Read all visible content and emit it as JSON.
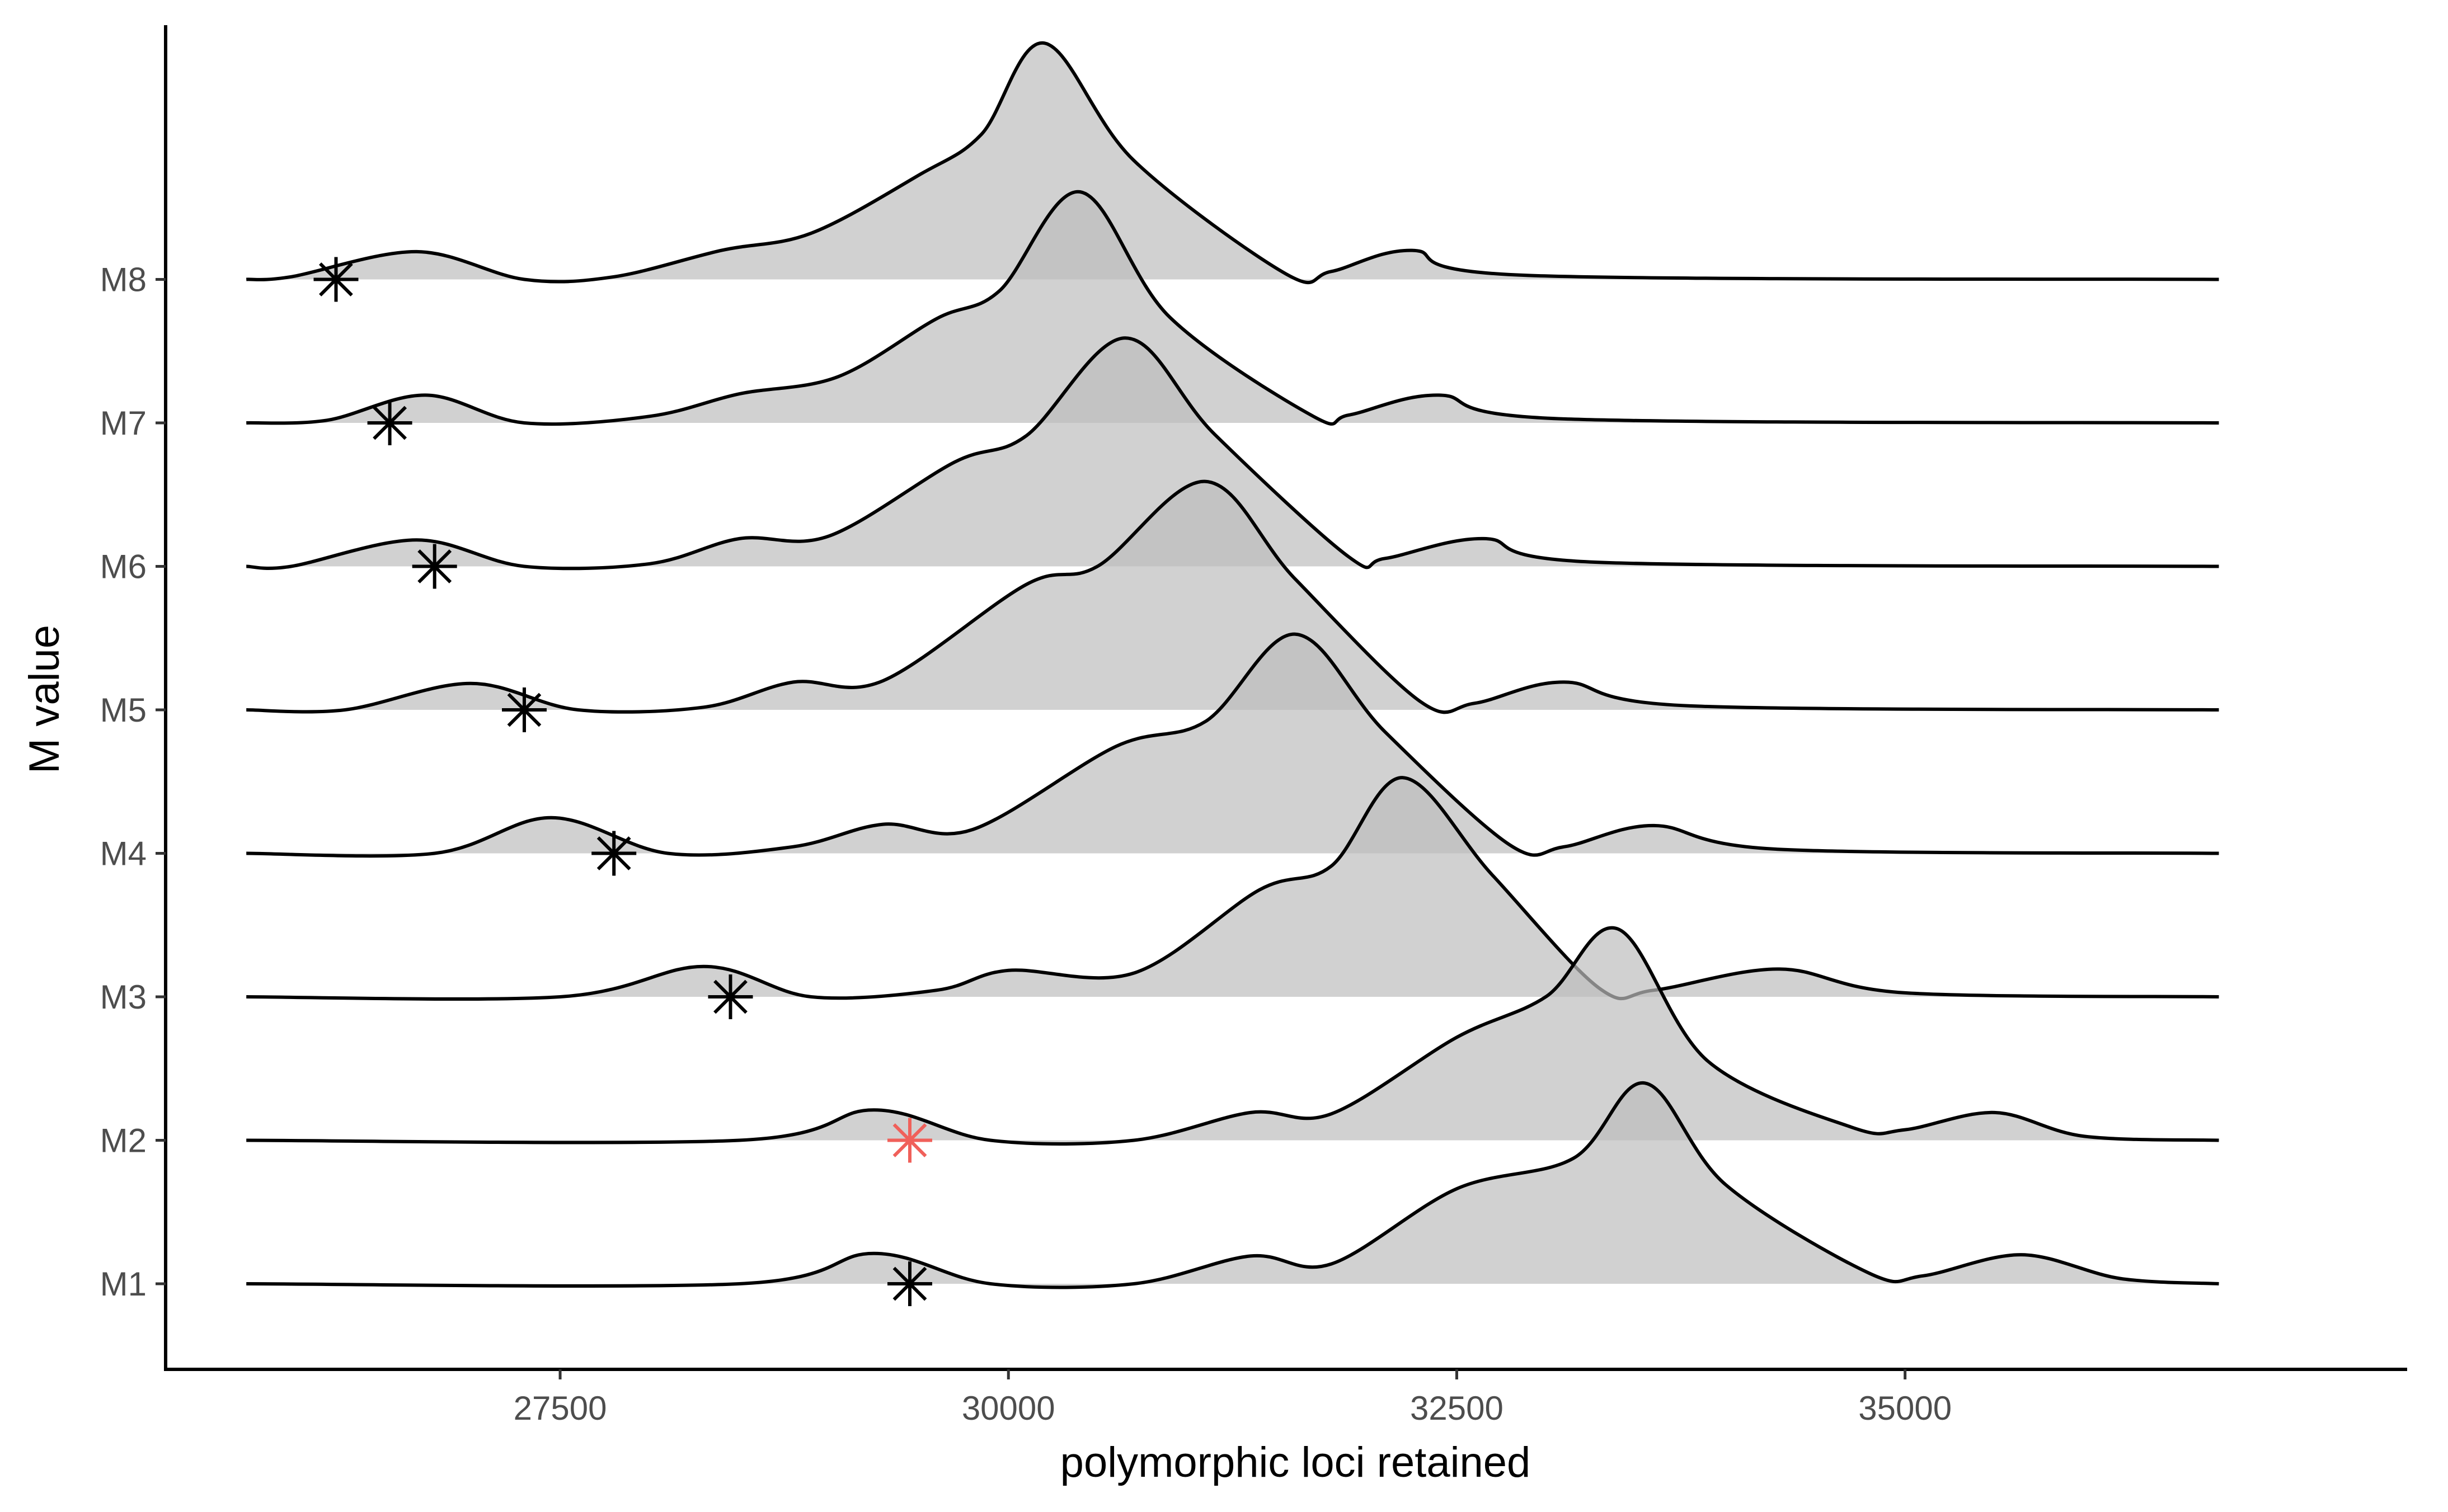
{
  "chart_data": {
    "type": "ridgeline",
    "xlabel": "polymorphic loci retained",
    "ylabel": "M value",
    "xlim": [
      25300,
      37800
    ],
    "x_ticks": [
      27500,
      30000,
      32500,
      35000
    ],
    "x_tick_labels": [
      "27500",
      "30000",
      "32500",
      "35000"
    ],
    "y_tick_labels": [
      "M1",
      "M2",
      "M3",
      "M4",
      "M5",
      "M6",
      "M7",
      "M8"
    ],
    "grid": false,
    "legend": "none",
    "fill_color": "#bdbdbd",
    "line_color": "#000000",
    "highlight_color": "#f0605a",
    "density_x_range": [
      25750,
      36750
    ],
    "series": [
      {
        "name": "M1",
        "marker_x": 29450,
        "highlight": false,
        "points": [
          [
            25750,
            0
          ],
          [
            28500,
            0
          ],
          [
            29250,
            0.23
          ],
          [
            29900,
            0
          ],
          [
            30700,
            0
          ],
          [
            31350,
            0.21
          ],
          [
            31800,
            0.15
          ],
          [
            32500,
            0.72
          ],
          [
            33150,
            0.95
          ],
          [
            33550,
            1.52
          ],
          [
            34000,
            0.75
          ],
          [
            34800,
            0.08
          ],
          [
            35100,
            0.06
          ],
          [
            35650,
            0.22
          ],
          [
            36200,
            0.04
          ],
          [
            36750,
            0
          ]
        ]
      },
      {
        "name": "M2",
        "marker_x": 29450,
        "highlight": true,
        "points": [
          [
            25750,
            0
          ],
          [
            28500,
            0
          ],
          [
            29250,
            0.23
          ],
          [
            29900,
            0
          ],
          [
            30700,
            0
          ],
          [
            31350,
            0.21
          ],
          [
            31800,
            0.2
          ],
          [
            32500,
            0.78
          ],
          [
            33000,
            1.09
          ],
          [
            33400,
            1.6
          ],
          [
            33900,
            0.6
          ],
          [
            34700,
            0.1
          ],
          [
            35000,
            0.08
          ],
          [
            35500,
            0.21
          ],
          [
            36000,
            0.03
          ],
          [
            36750,
            0
          ]
        ]
      },
      {
        "name": "M3",
        "marker_x": 28450,
        "highlight": false,
        "points": [
          [
            25750,
            0
          ],
          [
            27500,
            0
          ],
          [
            28300,
            0.23
          ],
          [
            28900,
            0
          ],
          [
            29600,
            0.05
          ],
          [
            30000,
            0.2
          ],
          [
            30700,
            0.18
          ],
          [
            31400,
            0.81
          ],
          [
            31800,
            0.99
          ],
          [
            32200,
            1.66
          ],
          [
            32700,
            0.92
          ],
          [
            33300,
            0.06
          ],
          [
            33600,
            0.05
          ],
          [
            34300,
            0.21
          ],
          [
            35000,
            0.03
          ],
          [
            36750,
            0
          ]
        ]
      },
      {
        "name": "M4",
        "marker_x": 27800,
        "highlight": false,
        "points": [
          [
            25750,
            0
          ],
          [
            26800,
            0
          ],
          [
            27450,
            0.27
          ],
          [
            28100,
            0
          ],
          [
            28800,
            0.05
          ],
          [
            29300,
            0.22
          ],
          [
            29800,
            0.18
          ],
          [
            30600,
            0.81
          ],
          [
            31100,
            1.0
          ],
          [
            31600,
            1.66
          ],
          [
            32100,
            0.92
          ],
          [
            32800,
            0.06
          ],
          [
            33100,
            0.05
          ],
          [
            33600,
            0.21
          ],
          [
            34300,
            0.03
          ],
          [
            36750,
            0
          ]
        ]
      },
      {
        "name": "M5",
        "marker_x": 27300,
        "highlight": false,
        "points": [
          [
            25750,
            0
          ],
          [
            26300,
            0
          ],
          [
            27000,
            0.2
          ],
          [
            27600,
            0
          ],
          [
            28300,
            0.02
          ],
          [
            28800,
            0.21
          ],
          [
            29300,
            0.22
          ],
          [
            30100,
            0.95
          ],
          [
            30500,
            1.09
          ],
          [
            31100,
            1.73
          ],
          [
            31600,
            0.99
          ],
          [
            32300,
            0.06
          ],
          [
            32600,
            0.05
          ],
          [
            33100,
            0.21
          ],
          [
            33800,
            0.03
          ],
          [
            36750,
            0
          ]
        ]
      },
      {
        "name": "M6",
        "marker_x": 26800,
        "highlight": false,
        "points": [
          [
            25750,
            0
          ],
          [
            26000,
            0
          ],
          [
            26700,
            0.2
          ],
          [
            27300,
            0
          ],
          [
            28000,
            0.02
          ],
          [
            28500,
            0.21
          ],
          [
            29000,
            0.23
          ],
          [
            29700,
            0.79
          ],
          [
            30100,
            0.99
          ],
          [
            30650,
            1.73
          ],
          [
            31150,
            1.0
          ],
          [
            31900,
            0.07
          ],
          [
            32100,
            0.06
          ],
          [
            32650,
            0.21
          ],
          [
            33300,
            0.03
          ],
          [
            36750,
            0
          ]
        ]
      },
      {
        "name": "M7",
        "marker_x": 26550,
        "highlight": false,
        "points": [
          [
            25750,
            0
          ],
          [
            26200,
            0.02
          ],
          [
            26750,
            0.21
          ],
          [
            27300,
            0
          ],
          [
            28000,
            0.05
          ],
          [
            28500,
            0.22
          ],
          [
            29050,
            0.35
          ],
          [
            29600,
            0.79
          ],
          [
            29950,
            1.0
          ],
          [
            30400,
            1.75
          ],
          [
            30900,
            0.8
          ],
          [
            31700,
            0.05
          ],
          [
            31900,
            0.06
          ],
          [
            32400,
            0.21
          ],
          [
            33100,
            0.03
          ],
          [
            36750,
            0
          ]
        ]
      },
      {
        "name": "M8",
        "marker_x": 26250,
        "highlight": false,
        "points": [
          [
            25750,
            0
          ],
          [
            26000,
            0.02
          ],
          [
            26700,
            0.21
          ],
          [
            27300,
            0
          ],
          [
            27800,
            0.02
          ],
          [
            28400,
            0.22
          ],
          [
            28900,
            0.35
          ],
          [
            29500,
            0.79
          ],
          [
            29850,
            1.1
          ],
          [
            30200,
            1.79
          ],
          [
            30700,
            0.9
          ],
          [
            31550,
            0.04
          ],
          [
            31800,
            0.06
          ],
          [
            32250,
            0.22
          ],
          [
            32900,
            0.03
          ],
          [
            36750,
            0
          ]
        ]
      }
    ]
  }
}
